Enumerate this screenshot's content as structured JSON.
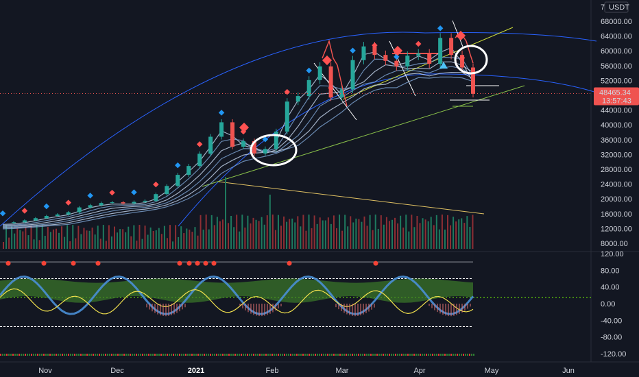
{
  "top_right": {
    "currency": "USDT",
    "scale_digit": "7"
  },
  "colors": {
    "background": "#131722",
    "up": "#26a69a",
    "down": "#ef5350",
    "ribbon": "#b2c9e6",
    "arc": "#2962ff",
    "price_tag": "#ef5350",
    "oscillator_blue": "#4a8fd6",
    "oscillator_green": "#6ab04c",
    "yellow": "#f1e04d"
  },
  "current_price": {
    "value": "48465.34",
    "countdown": "13:57:43"
  },
  "chart_data": {
    "type": "line",
    "price_axis_labels": [
      "68000.00",
      "64000.00",
      "60000.00",
      "56000.00",
      "52000.00",
      "48000.00",
      "44000.00",
      "40000.00",
      "36000.00",
      "32000.00",
      "28000.00",
      "24000.00",
      "20000.00",
      "16000.00",
      "12000.00",
      "8000.00"
    ],
    "oscillator_axis_labels": [
      "120.00",
      "80.00",
      "40.00",
      "0.00",
      "-40.00",
      "-80.00",
      "-120.00"
    ],
    "x_labels": [
      {
        "label": "Nov",
        "bold": false
      },
      {
        "label": "Dec",
        "bold": false
      },
      {
        "label": "2021",
        "bold": true
      },
      {
        "label": "Feb",
        "bold": false
      },
      {
        "label": "Mar",
        "bold": false
      },
      {
        "label": "Apr",
        "bold": false
      },
      {
        "label": "May",
        "bold": false
      },
      {
        "label": "Jun",
        "bold": false
      }
    ],
    "ylim": [
      8000,
      68000
    ],
    "oscillator_ylim": [
      -120,
      120
    ],
    "series": [
      {
        "values": [
          13500,
          13700,
          14200,
          14800,
          15400,
          15800,
          16400,
          17700,
          18300,
          18900,
          19100,
          18800,
          19200,
          19500,
          21300,
          23500,
          26500,
          28900,
          32200,
          36800,
          40700,
          34100,
          35600,
          32300,
          33500,
          38200,
          46300,
          47800,
          52100,
          55800,
          47400,
          49600,
          57500,
          61200,
          58900,
          57300,
          55800,
          58700,
          59300,
          56500,
          63500,
          58900,
          55500,
          48400
        ]
      }
    ]
  }
}
